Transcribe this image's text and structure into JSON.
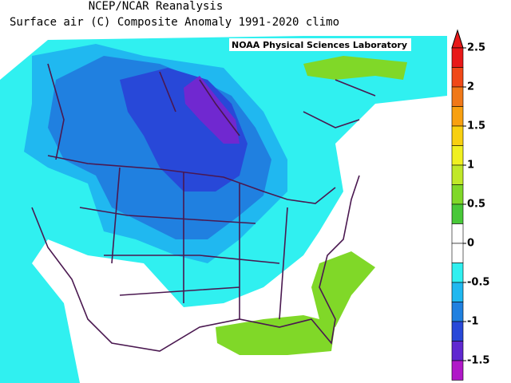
{
  "header": {
    "title": "NCEP/NCAR Reanalysis",
    "subtitle": "Surface air (C) Composite Anomaly 1991-2020 climo",
    "credit": "NOAA Physical Sciences Laboratory"
  },
  "colorbar": {
    "ticks": [
      2.5,
      2,
      1.5,
      1,
      0.5,
      0,
      -0.5,
      -1,
      -1.5
    ],
    "colors": [
      "#e81818",
      "#f04818",
      "#f07818",
      "#f8a010",
      "#f8d010",
      "#f0f020",
      "#c0e828",
      "#80d828",
      "#48c838",
      "#ffffff",
      "#ffffff",
      "#30f0f0",
      "#20b8f0",
      "#2080e0",
      "#2848d8",
      "#6028d0",
      "#b018c8"
    ]
  }
}
